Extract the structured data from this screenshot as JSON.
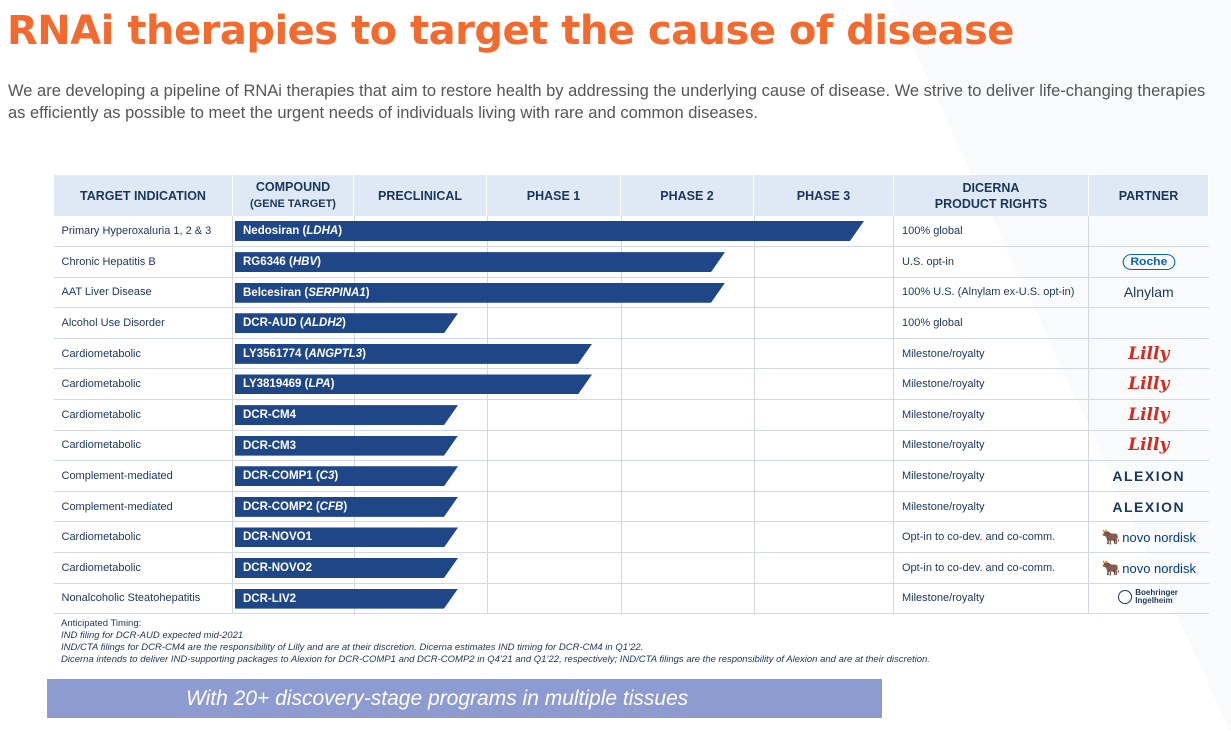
{
  "title": "RNAi therapies to target the cause of disease",
  "intro": "We are developing a pipeline of RNAi therapies that aim to restore health by addressing the underlying cause of disease. We strive to deliver life-changing therapies as efficiently as possible to meet the urgent needs of individuals living with rare and common diseases.",
  "table": {
    "headers": {
      "indication": "TARGET INDICATION",
      "compound": "COMPOUND",
      "compound_sub": "(GENE TARGET)",
      "preclinical": "PRECLINICAL",
      "phase1": "PHASE 1",
      "phase2": "PHASE 2",
      "phase3": "PHASE 3",
      "rights": "DICERNA",
      "rights_sub": "PRODUCT RIGHTS",
      "partner": "PARTNER"
    },
    "stages": [
      "Compound",
      "Preclinical",
      "Phase 1",
      "Phase 2",
      "Phase 3"
    ],
    "rows": [
      {
        "indication": "Primary Hyperoxaluria 1, 2 & 3",
        "compound": "Nedosiran",
        "gene": "LDHA",
        "progress_stage": 4.8,
        "rights": "100% global",
        "partner": ""
      },
      {
        "indication": "Chronic Hepatitis B",
        "compound": "RG6346",
        "gene": "HBV",
        "progress_stage": 3.8,
        "rights": "U.S. opt-in",
        "partner": "Roche"
      },
      {
        "indication": "AAT Liver Disease",
        "compound": "Belcesiran",
        "gene": "SERPINA1",
        "progress_stage": 3.8,
        "rights": "100% U.S. (Alnylam ex-U.S. opt-in)",
        "partner": "Alnylam"
      },
      {
        "indication": "Alcohol Use Disorder",
        "compound": "DCR-AUD",
        "gene": "ALDH2",
        "progress_stage": 1.8,
        "rights": "100% global",
        "partner": ""
      },
      {
        "indication": "Cardiometabolic",
        "compound": "LY3561774",
        "gene": "ANGPTL3",
        "progress_stage": 2.8,
        "rights": "Milestone/royalty",
        "partner": "Lilly"
      },
      {
        "indication": "Cardiometabolic",
        "compound": "LY3819469",
        "gene": "LPA",
        "progress_stage": 2.8,
        "rights": "Milestone/royalty",
        "partner": "Lilly"
      },
      {
        "indication": "Cardiometabolic",
        "compound": "DCR-CM4",
        "gene": "",
        "progress_stage": 1.8,
        "rights": "Milestone/royalty",
        "partner": "Lilly"
      },
      {
        "indication": "Cardiometabolic",
        "compound": "DCR-CM3",
        "gene": "",
        "progress_stage": 1.8,
        "rights": "Milestone/royalty",
        "partner": "Lilly"
      },
      {
        "indication": "Complement-mediated",
        "compound": "DCR-COMP1",
        "gene": "C3",
        "progress_stage": 1.8,
        "rights": "Milestone/royalty",
        "partner": "ALEXION"
      },
      {
        "indication": "Complement-mediated",
        "compound": "DCR-COMP2",
        "gene": "CFB",
        "progress_stage": 1.8,
        "rights": "Milestone/royalty",
        "partner": "ALEXION"
      },
      {
        "indication": "Cardiometabolic",
        "compound": "DCR-NOVO1",
        "gene": "",
        "progress_stage": 1.8,
        "rights": "Opt-in to co-dev. and co-comm.",
        "partner": "novo nordisk"
      },
      {
        "indication": "Cardiometabolic",
        "compound": "DCR-NOVO2",
        "gene": "",
        "progress_stage": 1.8,
        "rights": "Opt-in to co-dev. and co-comm.",
        "partner": "novo nordisk"
      },
      {
        "indication": "Nonalcoholic Steatohepatitis",
        "compound": "DCR-LIV2",
        "gene": "",
        "progress_stage": 1.8,
        "rights": "Milestone/royalty",
        "partner": "Boehringer Ingelheim"
      }
    ]
  },
  "notes": {
    "heading": "Anticipated Timing:",
    "lines": [
      "IND filing for DCR-AUD expected mid-2021",
      "IND/CTA filings for DCR-CM4 are the responsibility of Lilly and are at their discretion. Dicerna estimates IND timing for DCR-CM4 in Q1’22.",
      "Dicerna intends to deliver IND-supporting packages to Alexion for DCR-COMP1 and DCR-COMP2 in Q4’21 and Q1’22, respectively; IND/CTA filings are the responsibility of Alexion and are at their discretion."
    ]
  },
  "callout": "With 20+ discovery-stage programs in multiple tissues",
  "colors": {
    "title": "#f26a2e",
    "bar": "#1f4788",
    "header_bg": "#dfe8f5",
    "callout_bg": "#8e9bd0"
  }
}
